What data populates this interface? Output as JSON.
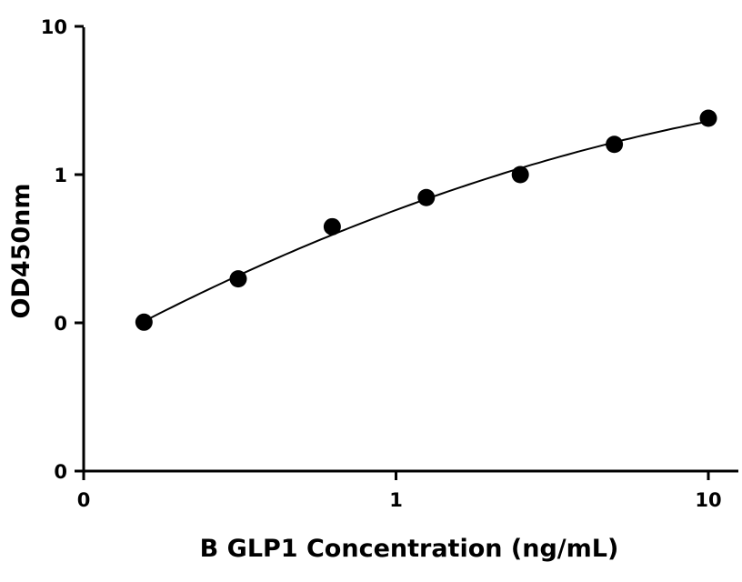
{
  "chart_data": {
    "type": "scatter",
    "xlabel": "B GLP1 Concentration (ng/mL)",
    "ylabel": "OD450nm",
    "x_scale": "log",
    "y_scale": "log",
    "xlim": [
      0.1,
      12
    ],
    "ylim": [
      0.01,
      10
    ],
    "x_ticks": [
      {
        "value": 0.1,
        "label": "0"
      },
      {
        "value": 1,
        "label": "1"
      },
      {
        "value": 10,
        "label": "10"
      }
    ],
    "y_ticks": [
      {
        "value": 0.01,
        "label": "0"
      },
      {
        "value": 0.1,
        "label": "0"
      },
      {
        "value": 1,
        "label": "1"
      },
      {
        "value": 10,
        "label": "10"
      }
    ],
    "points": [
      {
        "x": 0.156,
        "y": 0.101
      },
      {
        "x": 0.3125,
        "y": 0.198
      },
      {
        "x": 0.625,
        "y": 0.445
      },
      {
        "x": 1.25,
        "y": 0.7
      },
      {
        "x": 2.5,
        "y": 1.0
      },
      {
        "x": 5,
        "y": 1.6
      },
      {
        "x": 10,
        "y": 2.4
      }
    ],
    "fit_curve": true,
    "grid": false,
    "colors": {
      "marker": "#000000",
      "line": "#000000",
      "axis": "#000000"
    }
  }
}
